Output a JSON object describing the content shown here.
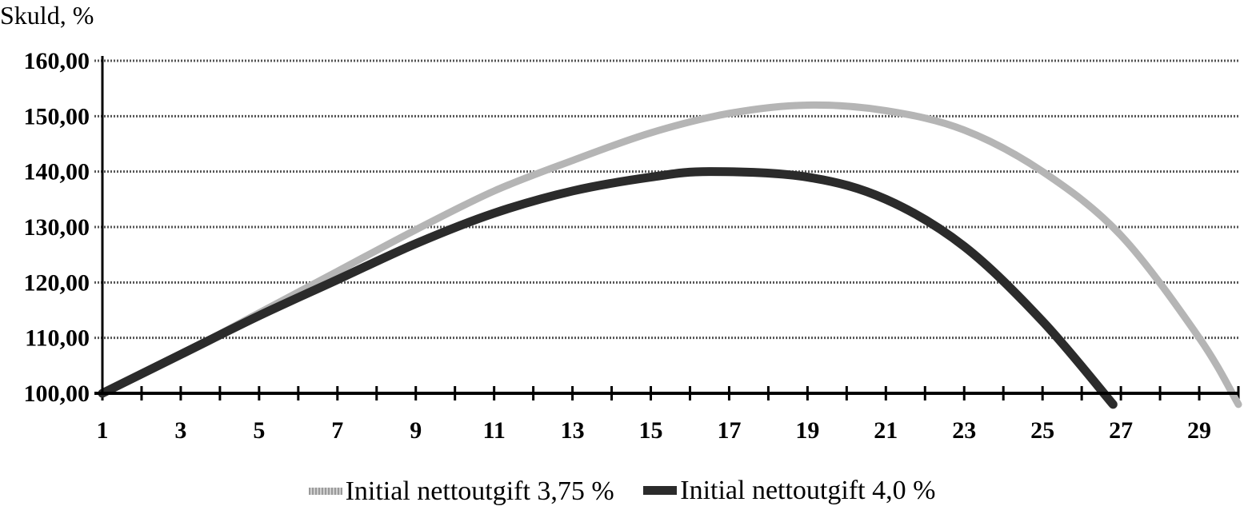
{
  "chart_data": {
    "type": "line",
    "title": "",
    "ylabel": "Skuld, %",
    "xlabel": "",
    "ylim": [
      100,
      160
    ],
    "xlim": [
      1,
      30
    ],
    "y_ticks": [
      "100,00",
      "110,00",
      "120,00",
      "130,00",
      "140,00",
      "150,00",
      "160,00"
    ],
    "y_tick_values": [
      100,
      110,
      120,
      130,
      140,
      150,
      160
    ],
    "x_tick_labels": [
      "1",
      "3",
      "5",
      "7",
      "9",
      "11",
      "13",
      "15",
      "17",
      "19",
      "21",
      "23",
      "25",
      "27",
      "29"
    ],
    "grid": "horizontal",
    "legend_position": "bottom",
    "series": [
      {
        "name": "Initial nettoutgift 3,75 %",
        "color": "#b5b5b5",
        "x": [
          1,
          3,
          5,
          7,
          9,
          11,
          13,
          15,
          17,
          19,
          21,
          23,
          25,
          27,
          29,
          30
        ],
        "values": [
          100,
          107,
          114.5,
          122,
          129.5,
          136.5,
          142,
          147,
          150.5,
          152,
          151,
          147.5,
          140,
          128.5,
          110,
          98
        ]
      },
      {
        "name": "Initial nettoutgift 4,0 %",
        "color": "#2b2b2b",
        "x": [
          1,
          3,
          5,
          7,
          9,
          11,
          13,
          15,
          16.5,
          19,
          21,
          23,
          25,
          26.8
        ],
        "values": [
          100,
          107,
          114,
          120.5,
          127,
          132.5,
          136.5,
          139,
          140,
          139,
          135,
          126.5,
          113,
          98
        ]
      }
    ]
  }
}
